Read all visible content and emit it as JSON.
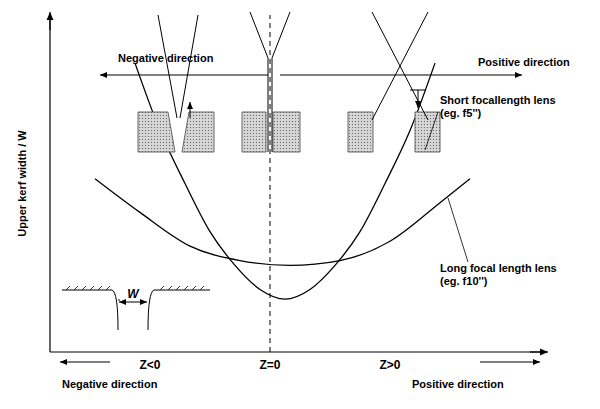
{
  "chart_data": {
    "type": "line",
    "y_label": "Upper kerf width / W",
    "xlim": [
      -4.4,
      5.5
    ],
    "xticks": [
      {
        "value": -2.4,
        "label": "Z<0"
      },
      {
        "value": 0,
        "label": "Z=0"
      },
      {
        "value": 2.4,
        "label": "Z>0"
      }
    ],
    "ylim": [
      0,
      7
    ],
    "yticks": [],
    "tick_labels": "x",
    "grid": false,
    "reference_x": 0,
    "series": [
      {
        "name": "Short focallength lens (eg. f5'')",
        "color": "#000000",
        "x": [
          -2.7,
          -2.2,
          -1.7,
          -1.2,
          -0.7,
          -0.2,
          0.3,
          0.8,
          1.3,
          1.8,
          2.3,
          2.8,
          3.3
        ],
        "values": [
          6.0,
          4.6,
          3.5,
          2.5,
          1.8,
          1.3,
          1.1,
          1.3,
          1.8,
          2.5,
          3.5,
          4.6,
          6.0
        ]
      },
      {
        "name": "Long focal length lens (eg. f10'')",
        "color": "#000000",
        "x": [
          -3.5,
          -2.6,
          -1.6,
          -0.6,
          0.4,
          1.4,
          2.4,
          3.4,
          4.0
        ],
        "values": [
          3.6,
          2.9,
          2.2,
          1.9,
          1.8,
          1.9,
          2.3,
          3.1,
          3.6
        ]
      }
    ],
    "annotations": [
      "Negative direction",
      "Positive direction",
      "Negative direction",
      "Positive direction",
      "W"
    ]
  }
}
